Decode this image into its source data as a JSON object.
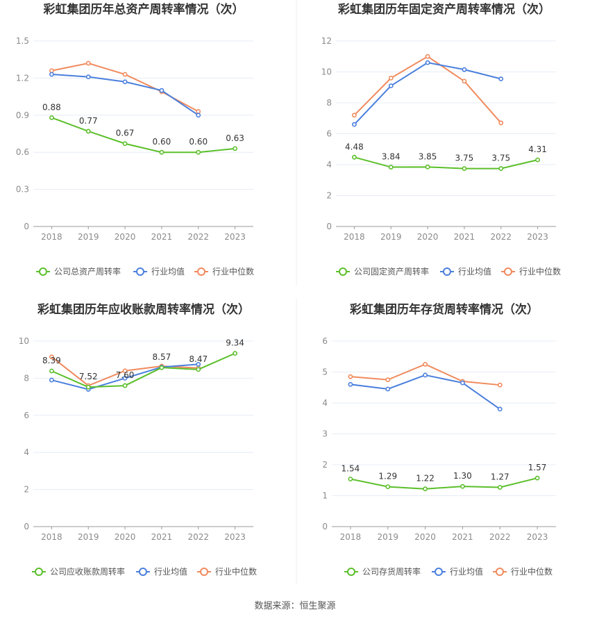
{
  "source_text": "数据来源：恒生聚源",
  "colors": {
    "company": "#5bbf2a",
    "avg": "#4a7fdc",
    "median": "#f08a5d"
  },
  "chart_data": [
    {
      "type": "line",
      "title": "彩虹集团历年总资产周转率情况（次）",
      "categories": [
        "2018",
        "2019",
        "2020",
        "2021",
        "2022",
        "2023"
      ],
      "ylim": [
        0,
        1.5
      ],
      "yticks": [
        "0",
        "0.3",
        "0.6",
        "0.9",
        "1.2",
        "1.5"
      ],
      "series": [
        {
          "name": "公司总资产周转率",
          "key": "company",
          "values": [
            0.88,
            0.77,
            0.67,
            0.6,
            0.6,
            0.63
          ],
          "labels": [
            "0.88",
            "0.77",
            "0.67",
            "0.60",
            "0.60",
            "0.63"
          ]
        },
        {
          "name": "行业均值",
          "key": "avg",
          "values": [
            1.23,
            1.21,
            1.17,
            1.1,
            0.9,
            null
          ]
        },
        {
          "name": "行业中位数",
          "key": "median",
          "values": [
            1.26,
            1.32,
            1.23,
            1.09,
            0.93,
            null
          ]
        }
      ]
    },
    {
      "type": "line",
      "title": "彩虹集团历年固定资产周转率情况（次）",
      "categories": [
        "2018",
        "2019",
        "2020",
        "2021",
        "2022",
        "2023"
      ],
      "ylim": [
        0,
        12
      ],
      "yticks": [
        "0",
        "2",
        "4",
        "6",
        "8",
        "10",
        "12"
      ],
      "series": [
        {
          "name": "公司固定资产周转率",
          "key": "company",
          "values": [
            4.48,
            3.84,
            3.85,
            3.75,
            3.75,
            4.31
          ],
          "labels": [
            "4.48",
            "3.84",
            "3.85",
            "3.75",
            "3.75",
            "4.31"
          ]
        },
        {
          "name": "行业均值",
          "key": "avg",
          "values": [
            6.6,
            9.1,
            10.6,
            10.15,
            9.55,
            null
          ]
        },
        {
          "name": "行业中位数",
          "key": "median",
          "values": [
            7.2,
            9.6,
            11.0,
            9.4,
            6.7,
            null
          ]
        }
      ]
    },
    {
      "type": "line",
      "title": "彩虹集团历年应收账款周转率情况（次）",
      "categories": [
        "2018",
        "2019",
        "2020",
        "2021",
        "2022",
        "2023"
      ],
      "ylim": [
        0,
        10
      ],
      "yticks": [
        "0",
        "2",
        "4",
        "6",
        "8",
        "10"
      ],
      "series": [
        {
          "name": "公司应收账款周转率",
          "key": "company",
          "values": [
            8.39,
            7.52,
            7.6,
            8.57,
            8.47,
            9.34
          ],
          "labels": [
            "8.39",
            "7.52",
            "7.60",
            "8.57",
            "8.47",
            "9.34"
          ]
        },
        {
          "name": "行业均值",
          "key": "avg",
          "values": [
            7.9,
            7.4,
            8.0,
            8.6,
            8.75,
            null
          ]
        },
        {
          "name": "行业中位数",
          "key": "median",
          "values": [
            9.15,
            7.6,
            8.4,
            8.65,
            8.55,
            null
          ]
        }
      ]
    },
    {
      "type": "line",
      "title": "彩虹集团历年存货周转率情况（次）",
      "categories": [
        "2018",
        "2019",
        "2020",
        "2021",
        "2022",
        "2023"
      ],
      "ylim": [
        0,
        6
      ],
      "yticks": [
        "0",
        "1",
        "2",
        "3",
        "4",
        "5",
        "6"
      ],
      "series": [
        {
          "name": "公司存货周转率",
          "key": "company",
          "values": [
            1.54,
            1.29,
            1.22,
            1.3,
            1.27,
            1.57
          ],
          "labels": [
            "1.54",
            "1.29",
            "1.22",
            "1.30",
            "1.27",
            "1.57"
          ]
        },
        {
          "name": "行业均值",
          "key": "avg",
          "values": [
            4.6,
            4.45,
            4.9,
            4.65,
            3.8,
            null
          ]
        },
        {
          "name": "行业中位数",
          "key": "median",
          "values": [
            4.85,
            4.75,
            5.25,
            4.7,
            4.58,
            null
          ]
        }
      ]
    }
  ]
}
